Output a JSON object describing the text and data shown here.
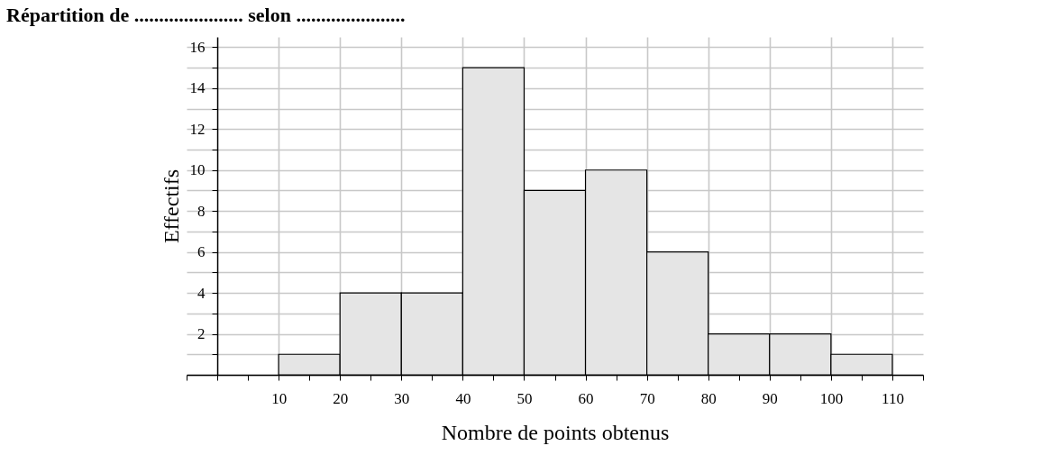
{
  "chart_data": {
    "type": "histogram",
    "title": "Répartition de  ......................  selon  ......................",
    "xlabel": "Nombre de points obtenus",
    "ylabel": "Effectifs",
    "bins": [
      0,
      10,
      20,
      30,
      40,
      50,
      60,
      70,
      80,
      90,
      100,
      110
    ],
    "values": [
      0,
      1,
      4,
      4,
      15,
      9,
      10,
      6,
      2,
      2,
      1
    ],
    "color": "#e5e5e5",
    "xlim": [
      -5,
      115
    ],
    "xticks": [
      {
        "value": -5,
        "label": null
      },
      {
        "value": 0,
        "label": null
      },
      {
        "value": 5,
        "label": null
      },
      10,
      {
        "value": 15,
        "label": null
      },
      20,
      {
        "value": 25,
        "label": null
      },
      30,
      {
        "value": 35,
        "label": null
      },
      40,
      {
        "value": 45,
        "label": null
      },
      50,
      {
        "value": 55,
        "label": null
      },
      60,
      {
        "value": 65,
        "label": null
      },
      70,
      {
        "value": 75,
        "label": null
      },
      80,
      {
        "value": 85,
        "label": null
      },
      90,
      {
        "value": 95,
        "label": null
      },
      100,
      {
        "value": 105,
        "label": null
      },
      110,
      {
        "value": 115,
        "label": null
      }
    ],
    "ylim": [
      0,
      16.5
    ],
    "yticks": [
      {
        "value": 0,
        "label": null
      },
      {
        "value": 1,
        "label": null
      },
      2,
      {
        "value": 3,
        "label": null
      },
      4,
      {
        "value": 5,
        "label": null
      },
      6,
      {
        "value": 7,
        "label": null
      },
      8,
      {
        "value": 9,
        "label": null
      },
      10,
      {
        "value": 11,
        "label": null
      },
      12,
      {
        "value": 13,
        "label": null
      },
      14,
      {
        "value": 15,
        "label": null
      },
      16
    ],
    "grid": true
  }
}
